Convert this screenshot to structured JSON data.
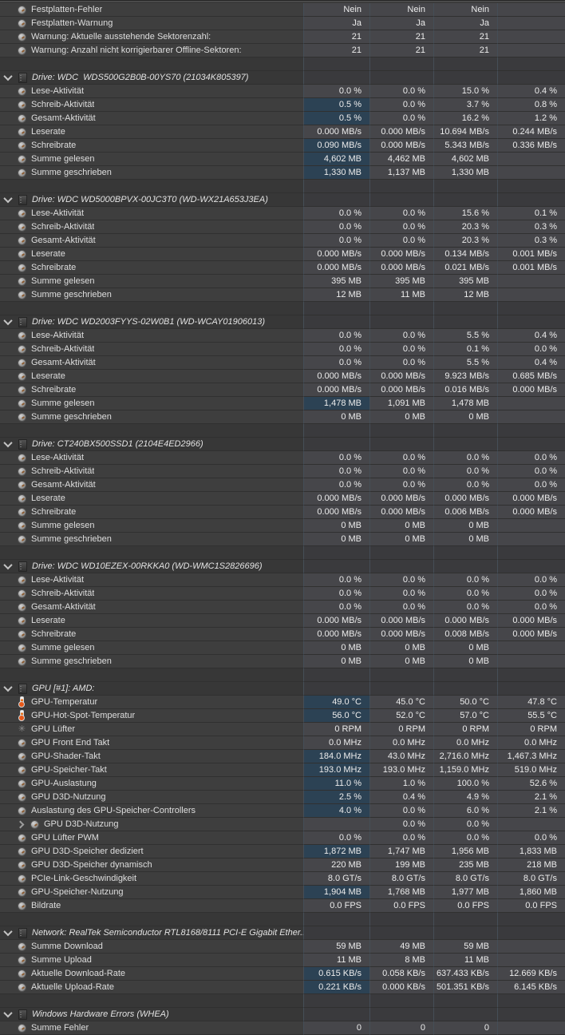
{
  "palette": {
    "row_bg": "#3e3e3e",
    "cell_bg": "#46464a",
    "section_bg": "#373737",
    "section_cell_bg": "#3a3a3d",
    "highlight_bg": "#2c4254",
    "divider": "#454e57",
    "separator": "#303030",
    "label_text": "#dedede",
    "value_text": "#ececec"
  },
  "table": {
    "sections": [
      {
        "header": null,
        "gap_after": true,
        "rows": [
          {
            "label": "Festplatten-Fehler",
            "icon": "gauge-icon",
            "values": [
              "Nein",
              "Nein",
              "Nein",
              ""
            ]
          },
          {
            "label": "Festplatten-Warnung",
            "icon": "gauge-icon",
            "values": [
              "Ja",
              "Ja",
              "Ja",
              ""
            ]
          },
          {
            "label": "Warnung: Aktuelle ausstehende Sektorenzahl:",
            "icon": "gauge-icon",
            "values": [
              "21",
              "21",
              "21",
              ""
            ]
          },
          {
            "label": "Warnung: Anzahl nicht korrigierbarer Offline-Sektoren:",
            "icon": "gauge-icon",
            "values": [
              "21",
              "21",
              "21",
              ""
            ]
          }
        ]
      },
      {
        "header": "Drive: WDC  WDS500G2B0B-00YS70 (21034K805397)",
        "gap_after": true,
        "rows": [
          {
            "label": "Lese-Aktivität",
            "icon": "gauge-icon",
            "values": [
              "0.0 %",
              "0.0 %",
              "15.0 %",
              "0.4 %"
            ]
          },
          {
            "label": "Schreib-Aktivität",
            "icon": "gauge-icon",
            "values": [
              "0.5 %",
              "0.0 %",
              "3.7 %",
              "0.8 %"
            ],
            "hl": [
              0
            ]
          },
          {
            "label": "Gesamt-Aktivität",
            "icon": "gauge-icon",
            "values": [
              "0.5 %",
              "0.0 %",
              "16.2 %",
              "1.2 %"
            ],
            "hl": [
              0
            ]
          },
          {
            "label": "Leserate",
            "icon": "gauge-icon",
            "values": [
              "0.000 MB/s",
              "0.000 MB/s",
              "10.694 MB/s",
              "0.244 MB/s"
            ]
          },
          {
            "label": "Schreibrate",
            "icon": "gauge-icon",
            "values": [
              "0.090 MB/s",
              "0.000 MB/s",
              "5.343 MB/s",
              "0.336 MB/s"
            ],
            "hl": [
              0
            ]
          },
          {
            "label": "Summe gelesen",
            "icon": "gauge-icon",
            "values": [
              "4,602 MB",
              "4,462 MB",
              "4,602 MB",
              ""
            ],
            "hl": [
              0
            ]
          },
          {
            "label": "Summe geschrieben",
            "icon": "gauge-icon",
            "values": [
              "1,330 MB",
              "1,137 MB",
              "1,330 MB",
              ""
            ],
            "hl": [
              0
            ]
          }
        ]
      },
      {
        "header": "Drive: WDC WD5000BPVX-00JC3T0 (WD-WX21A653J3EA)",
        "gap_after": true,
        "rows": [
          {
            "label": "Lese-Aktivität",
            "icon": "gauge-icon",
            "values": [
              "0.0 %",
              "0.0 %",
              "15.6 %",
              "0.1 %"
            ]
          },
          {
            "label": "Schreib-Aktivität",
            "icon": "gauge-icon",
            "values": [
              "0.0 %",
              "0.0 %",
              "20.3 %",
              "0.3 %"
            ]
          },
          {
            "label": "Gesamt-Aktivität",
            "icon": "gauge-icon",
            "values": [
              "0.0 %",
              "0.0 %",
              "20.3 %",
              "0.3 %"
            ]
          },
          {
            "label": "Leserate",
            "icon": "gauge-icon",
            "values": [
              "0.000 MB/s",
              "0.000 MB/s",
              "0.134 MB/s",
              "0.001 MB/s"
            ]
          },
          {
            "label": "Schreibrate",
            "icon": "gauge-icon",
            "values": [
              "0.000 MB/s",
              "0.000 MB/s",
              "0.021 MB/s",
              "0.001 MB/s"
            ]
          },
          {
            "label": "Summe gelesen",
            "icon": "gauge-icon",
            "values": [
              "395 MB",
              "395 MB",
              "395 MB",
              ""
            ]
          },
          {
            "label": "Summe geschrieben",
            "icon": "gauge-icon",
            "values": [
              "12 MB",
              "11 MB",
              "12 MB",
              ""
            ]
          }
        ]
      },
      {
        "header": "Drive: WDC WD2003FYYS-02W0B1 (WD-WCAY01906013)",
        "gap_after": true,
        "rows": [
          {
            "label": "Lese-Aktivität",
            "icon": "gauge-icon",
            "values": [
              "0.0 %",
              "0.0 %",
              "5.5 %",
              "0.4 %"
            ]
          },
          {
            "label": "Schreib-Aktivität",
            "icon": "gauge-icon",
            "values": [
              "0.0 %",
              "0.0 %",
              "0.1 %",
              "0.0 %"
            ]
          },
          {
            "label": "Gesamt-Aktivität",
            "icon": "gauge-icon",
            "values": [
              "0.0 %",
              "0.0 %",
              "5.5 %",
              "0.4 %"
            ]
          },
          {
            "label": "Leserate",
            "icon": "gauge-icon",
            "values": [
              "0.000 MB/s",
              "0.000 MB/s",
              "9.923 MB/s",
              "0.685 MB/s"
            ]
          },
          {
            "label": "Schreibrate",
            "icon": "gauge-icon",
            "values": [
              "0.000 MB/s",
              "0.000 MB/s",
              "0.016 MB/s",
              "0.000 MB/s"
            ]
          },
          {
            "label": "Summe gelesen",
            "icon": "gauge-icon",
            "values": [
              "1,478 MB",
              "1,091 MB",
              "1,478 MB",
              ""
            ],
            "hl": [
              0
            ]
          },
          {
            "label": "Summe geschrieben",
            "icon": "gauge-icon",
            "values": [
              "0 MB",
              "0 MB",
              "0 MB",
              ""
            ]
          }
        ]
      },
      {
        "header": "Drive: CT240BX500SSD1 (2104E4ED2966)",
        "gap_after": true,
        "rows": [
          {
            "label": "Lese-Aktivität",
            "icon": "gauge-icon",
            "values": [
              "0.0 %",
              "0.0 %",
              "0.0 %",
              "0.0 %"
            ]
          },
          {
            "label": "Schreib-Aktivität",
            "icon": "gauge-icon",
            "values": [
              "0.0 %",
              "0.0 %",
              "0.0 %",
              "0.0 %"
            ]
          },
          {
            "label": "Gesamt-Aktivität",
            "icon": "gauge-icon",
            "values": [
              "0.0 %",
              "0.0 %",
              "0.0 %",
              "0.0 %"
            ]
          },
          {
            "label": "Leserate",
            "icon": "gauge-icon",
            "values": [
              "0.000 MB/s",
              "0.000 MB/s",
              "0.000 MB/s",
              "0.000 MB/s"
            ]
          },
          {
            "label": "Schreibrate",
            "icon": "gauge-icon",
            "values": [
              "0.000 MB/s",
              "0.000 MB/s",
              "0.006 MB/s",
              "0.000 MB/s"
            ]
          },
          {
            "label": "Summe gelesen",
            "icon": "gauge-icon",
            "values": [
              "0 MB",
              "0 MB",
              "0 MB",
              ""
            ]
          },
          {
            "label": "Summe geschrieben",
            "icon": "gauge-icon",
            "values": [
              "0 MB",
              "0 MB",
              "0 MB",
              ""
            ]
          }
        ]
      },
      {
        "header": "Drive: WDC WD10EZEX-00RKKA0 (WD-WMC1S2826696)",
        "gap_after": true,
        "rows": [
          {
            "label": "Lese-Aktivität",
            "icon": "gauge-icon",
            "values": [
              "0.0 %",
              "0.0 %",
              "0.0 %",
              "0.0 %"
            ]
          },
          {
            "label": "Schreib-Aktivität",
            "icon": "gauge-icon",
            "values": [
              "0.0 %",
              "0.0 %",
              "0.0 %",
              "0.0 %"
            ]
          },
          {
            "label": "Gesamt-Aktivität",
            "icon": "gauge-icon",
            "values": [
              "0.0 %",
              "0.0 %",
              "0.0 %",
              "0.0 %"
            ]
          },
          {
            "label": "Leserate",
            "icon": "gauge-icon",
            "values": [
              "0.000 MB/s",
              "0.000 MB/s",
              "0.000 MB/s",
              "0.000 MB/s"
            ]
          },
          {
            "label": "Schreibrate",
            "icon": "gauge-icon",
            "values": [
              "0.000 MB/s",
              "0.000 MB/s",
              "0.008 MB/s",
              "0.000 MB/s"
            ]
          },
          {
            "label": "Summe gelesen",
            "icon": "gauge-icon",
            "values": [
              "0 MB",
              "0 MB",
              "0 MB",
              ""
            ]
          },
          {
            "label": "Summe geschrieben",
            "icon": "gauge-icon",
            "values": [
              "0 MB",
              "0 MB",
              "0 MB",
              ""
            ]
          }
        ]
      },
      {
        "header": "GPU [#1]: AMD:",
        "gap_after": true,
        "rows": [
          {
            "label": "GPU-Temperatur",
            "icon": "thermometer-icon",
            "values": [
              "49.0 °C",
              "45.0 °C",
              "50.0 °C",
              "47.8 °C"
            ],
            "hl": [
              0
            ]
          },
          {
            "label": "GPU-Hot-Spot-Temperatur",
            "icon": "thermometer-icon",
            "values": [
              "56.0 °C",
              "52.0 °C",
              "57.0 °C",
              "55.5 °C"
            ],
            "hl": [
              0
            ]
          },
          {
            "label": "GPU Lüfter",
            "icon": "fan-icon",
            "values": [
              "0 RPM",
              "0 RPM",
              "0 RPM",
              "0 RPM"
            ]
          },
          {
            "label": "GPU Front End Takt",
            "icon": "gauge-icon",
            "values": [
              "0.0 MHz",
              "0.0 MHz",
              "0.0 MHz",
              "0.0 MHz"
            ]
          },
          {
            "label": "GPU-Shader-Takt",
            "icon": "gauge-icon",
            "values": [
              "184.0 MHz",
              "43.0 MHz",
              "2,716.0 MHz",
              "1,467.3 MHz"
            ],
            "hl": [
              0
            ]
          },
          {
            "label": "GPU-Speicher-Takt",
            "icon": "gauge-icon",
            "values": [
              "193.0 MHz",
              "193.0 MHz",
              "1,159.0 MHz",
              "519.0 MHz"
            ],
            "hl": [
              0
            ]
          },
          {
            "label": "GPU-Auslastung",
            "icon": "gauge-icon",
            "values": [
              "11.0 %",
              "1.0 %",
              "100.0 %",
              "52.6 %"
            ],
            "hl": [
              0
            ]
          },
          {
            "label": "GPU D3D-Nutzung",
            "icon": "gauge-icon",
            "values": [
              "2.5 %",
              "0.4 %",
              "4.9 %",
              "2.1 %"
            ],
            "hl": [
              0
            ]
          },
          {
            "label": "Auslastung des GPU-Speicher-Controllers",
            "icon": "gauge-icon",
            "values": [
              "4.0 %",
              "0.0 %",
              "6.0 %",
              "2.1 %"
            ],
            "hl": [
              0
            ]
          },
          {
            "label": "GPU D3D-Nutzung",
            "icon": "gauge-icon",
            "values": [
              "",
              "0.0 %",
              "0.0 %",
              ""
            ],
            "child": true
          },
          {
            "label": "GPU Lüfter PWM",
            "icon": "gauge-icon",
            "values": [
              "0.0 %",
              "0.0 %",
              "0.0 %",
              "0.0 %"
            ]
          },
          {
            "label": "GPU D3D-Speicher dediziert",
            "icon": "gauge-icon",
            "values": [
              "1,872 MB",
              "1,747 MB",
              "1,956 MB",
              "1,833 MB"
            ],
            "hl": [
              0
            ]
          },
          {
            "label": "GPU D3D-Speicher dynamisch",
            "icon": "gauge-icon",
            "values": [
              "220 MB",
              "199 MB",
              "235 MB",
              "218 MB"
            ]
          },
          {
            "label": "PCIe-Link-Geschwindigkeit",
            "icon": "gauge-icon",
            "values": [
              "8.0 GT/s",
              "8.0 GT/s",
              "8.0 GT/s",
              "8.0 GT/s"
            ]
          },
          {
            "label": "GPU-Speicher-Nutzung",
            "icon": "gauge-icon",
            "values": [
              "1,904 MB",
              "1,768 MB",
              "1,977 MB",
              "1,860 MB"
            ],
            "hl": [
              0
            ]
          },
          {
            "label": "Bildrate",
            "icon": "gauge-icon",
            "values": [
              "0.0 FPS",
              "0.0 FPS",
              "0.0 FPS",
              "0.0 FPS"
            ]
          }
        ]
      },
      {
        "header": "Network: RealTek Semiconductor RTL8168/8111 PCI-E Gigabit Ether...",
        "gap_after": true,
        "rows": [
          {
            "label": "Summe Download",
            "icon": "gauge-icon",
            "values": [
              "59 MB",
              "49 MB",
              "59 MB",
              ""
            ]
          },
          {
            "label": "Summe Upload",
            "icon": "gauge-icon",
            "values": [
              "11 MB",
              "8 MB",
              "11 MB",
              ""
            ]
          },
          {
            "label": "Aktuelle Download-Rate",
            "icon": "gauge-icon",
            "values": [
              "0.615 KB/s",
              "0.058 KB/s",
              "637.433 KB/s",
              "12.669 KB/s"
            ],
            "hl": [
              0
            ]
          },
          {
            "label": "Aktuelle Upload-Rate",
            "icon": "gauge-icon",
            "values": [
              "0.221 KB/s",
              "0.000 KB/s",
              "501.351 KB/s",
              "6.145 KB/s"
            ],
            "hl": [
              0
            ]
          }
        ]
      },
      {
        "header": "Windows Hardware Errors (WHEA)",
        "gap_after": false,
        "rows": [
          {
            "label": "Summe Fehler",
            "icon": "gauge-icon",
            "values": [
              "0",
              "0",
              "0",
              ""
            ]
          }
        ]
      }
    ]
  },
  "icons": {
    "fan_glyph": "✳"
  }
}
